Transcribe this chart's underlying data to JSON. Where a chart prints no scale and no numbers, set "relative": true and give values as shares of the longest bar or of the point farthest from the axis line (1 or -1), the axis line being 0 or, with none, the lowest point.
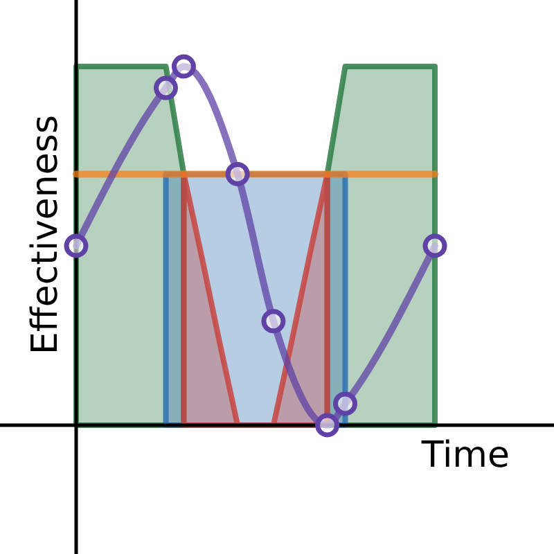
{
  "chart_data": {
    "type": "line",
    "xlabel": "Time",
    "ylabel": "Effectiveness",
    "relative": true,
    "line_style": "solid",
    "categories": [
      null,
      null,
      null,
      null,
      null,
      null,
      null,
      null,
      null,
      null,
      null,
      null,
      null,
      null,
      null,
      null,
      null,
      null,
      null,
      null,
      null
    ],
    "series": [
      {
        "type": "area",
        "color": "#2d7d46",
        "values": [
          1,
          1,
          1,
          1,
          1,
          1,
          0.7,
          null,
          null,
          null,
          null,
          null,
          null,
          null,
          0.7,
          1,
          1,
          1,
          1,
          1,
          1
        ]
      },
      {
        "type": "area",
        "color": "#2d70b3",
        "values": [
          null,
          null,
          null,
          null,
          null,
          0.7,
          0.7,
          0.7,
          0.7,
          0.7,
          0.7,
          0.7,
          0.7,
          0.7,
          0.7,
          0.7,
          null,
          null,
          null,
          null,
          null
        ]
      },
      {
        "type": "area",
        "color": "#c74440",
        "values": [
          null,
          null,
          null,
          null,
          null,
          null,
          0.7,
          0.47,
          0.23,
          0,
          0,
          0,
          0.23,
          0.47,
          0.7,
          null,
          null,
          null,
          null,
          null,
          null
        ]
      },
      {
        "color": "#fa7e19",
        "values": [
          0.7,
          0.7,
          0.7,
          0.7,
          0.7,
          0.7,
          0.7,
          0.7,
          0.7,
          0.7,
          0.7,
          0.7,
          0.7,
          0.7,
          0.7,
          0.7,
          0.7,
          0.7,
          0.7,
          0.7,
          0.7
        ]
      },
      {
        "color": "#6042a6",
        "marker": "circle",
        "values": [
          0.5,
          null,
          null,
          null,
          null,
          0.94,
          1,
          null,
          null,
          0.7,
          null,
          0.29,
          null,
          null,
          0,
          0.06,
          null,
          null,
          null,
          null,
          0.5
        ]
      }
    ]
  }
}
